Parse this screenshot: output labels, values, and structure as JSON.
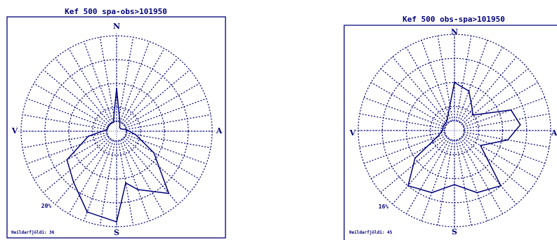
{
  "colors": {
    "ink": "#00007a",
    "background": "#ffffff"
  },
  "chart_data": [
    {
      "type": "polar-rose",
      "title": "Kef 500 spa-obs>101950",
      "directions": {
        "north": "N",
        "south": "S",
        "east": "A",
        "west": "V"
      },
      "max_label": "20%",
      "footer": "Heildarfjöldi: 36",
      "grid": true,
      "rings": [
        0.1,
        0.25,
        0.5,
        0.75,
        1.0
      ],
      "sectors": 36,
      "r_max": 20,
      "unit": "%",
      "angles_deg": [
        0,
        20,
        40,
        60,
        80,
        100,
        120,
        140,
        160,
        170,
        180,
        200,
        220,
        240,
        260,
        280,
        300,
        320,
        340
      ],
      "values": [
        9,
        2,
        1,
        1,
        2,
        4,
        9,
        17,
        13,
        11,
        19,
        18,
        14,
        12,
        6,
        2,
        2,
        2,
        2
      ]
    },
    {
      "type": "polar-rose",
      "title": "Kef 500 obs-spa>101950",
      "directions": {
        "north": "N",
        "south": "S",
        "east": "A",
        "west": "V"
      },
      "max_label": "16%",
      "footer": "Heildarfjöldi: 45",
      "grid": true,
      "rings": [
        0.1,
        0.25,
        0.5,
        0.75,
        1.0
      ],
      "sectors": 36,
      "r_max": 16,
      "unit": "%",
      "angles_deg": [
        0,
        20,
        35,
        50,
        70,
        85,
        100,
        120,
        140,
        160,
        180,
        200,
        220,
        235,
        250,
        270,
        290,
        320,
        340
      ],
      "values": [
        8,
        7,
        5,
        4,
        10,
        11,
        9,
        5,
        12,
        11,
        9,
        11,
        12,
        8,
        3,
        2,
        2,
        2,
        3
      ]
    }
  ]
}
